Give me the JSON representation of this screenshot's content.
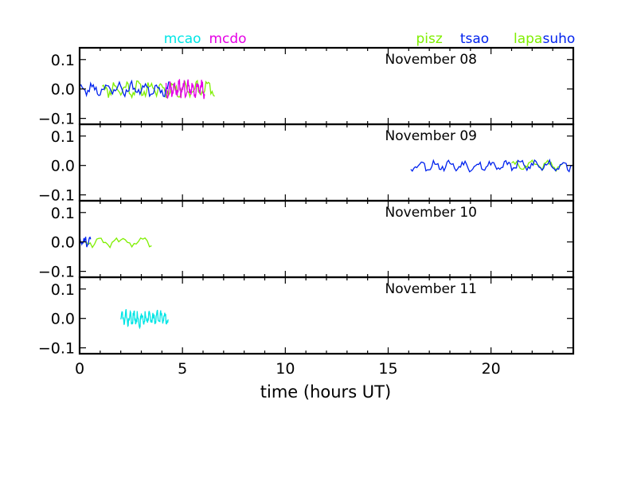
{
  "chart_data": {
    "type": "line",
    "xlabel": "time (hours UT)",
    "xlim": [
      0,
      24
    ],
    "x_ticks": [
      0,
      5,
      10,
      15,
      20
    ],
    "ylim": [
      -0.12,
      0.14
    ],
    "y_ticks": [
      {
        "value": 0.1,
        "label": "0.1"
      },
      {
        "value": 0.0,
        "label": "0.0"
      },
      {
        "value": -0.1,
        "label": "−0.1"
      }
    ],
    "site_labels": [
      {
        "text": "mcao",
        "hour": 5.0,
        "color": "#00e5e5"
      },
      {
        "text": "mcdo",
        "hour": 7.2,
        "color": "#e500e5"
      },
      {
        "text": "pisz",
        "hour": 17.0,
        "color": "#7fef00"
      },
      {
        "text": "tsao",
        "hour": 19.2,
        "color": "#0022ee"
      },
      {
        "text": "lapa",
        "hour": 21.8,
        "color": "#7fef00"
      },
      {
        "text": "suho",
        "hour": 23.3,
        "color": "#0022ee"
      }
    ],
    "series_colors": {
      "mcao": "#00e5e5",
      "mcdo": "#e500e5",
      "green": "#7fef00",
      "blue": "#0022ee"
    },
    "panels": [
      {
        "label": "November 08",
        "series": [
          {
            "color": "#7fef00",
            "range": [
              1.1,
              6.6
            ],
            "amp": 0.025,
            "seed": 11,
            "period": 0.18
          },
          {
            "color": "#0022ee",
            "range": [
              0.0,
              4.4
            ],
            "amp": 0.022,
            "seed": 23,
            "period": 0.2
          },
          {
            "color": "#e500e5",
            "range": [
              4.2,
              6.1
            ],
            "amp": 0.028,
            "seed": 37,
            "period": 0.07
          }
        ]
      },
      {
        "label": "November 09",
        "series": [
          {
            "color": "#7fef00",
            "range": [
              21.0,
              23.5
            ],
            "amp": 0.015,
            "seed": 41,
            "period": 0.25
          },
          {
            "color": "#0022ee",
            "range": [
              16.1,
              24.0
            ],
            "amp": 0.018,
            "seed": 53,
            "period": 0.22
          }
        ]
      },
      {
        "label": "November 10",
        "series": [
          {
            "color": "#7fef00",
            "range": [
              0.3,
              3.6
            ],
            "amp": 0.018,
            "seed": 61,
            "period": 0.32
          },
          {
            "color": "#0022ee",
            "range": [
              0.0,
              0.55
            ],
            "amp": 0.02,
            "seed": 71,
            "period": 0.08
          }
        ]
      },
      {
        "label": "November 11",
        "series": [
          {
            "color": "#00e5e5",
            "range": [
              2.0,
              4.3
            ],
            "amp": 0.025,
            "seed": 83,
            "period": 0.06
          }
        ]
      }
    ]
  }
}
